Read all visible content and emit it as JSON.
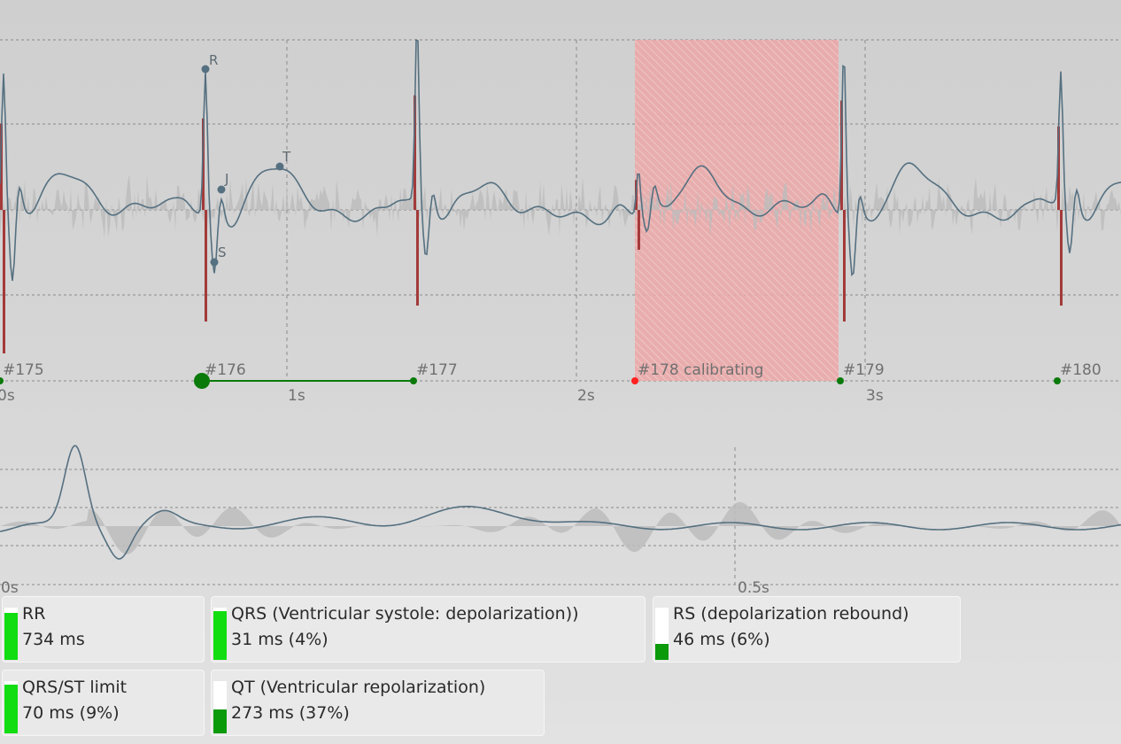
{
  "colors": {
    "trace": "#557080",
    "beat_ok": "#0a7a0a",
    "beat_calibrating": "#ff2020",
    "qrs_bars": "#a33a3a",
    "calibrating_region": "#f0a0a0",
    "bar_green": "#11dd11",
    "bar_darkgreen": "#0a9a0a"
  },
  "main_chart": {
    "time_ticks": [
      "0s",
      "1s",
      "2s",
      "3s"
    ],
    "beats": [
      {
        "label": "#175",
        "status": "ok"
      },
      {
        "label": "#176",
        "status": "selected"
      },
      {
        "label": "#177",
        "status": "ok"
      },
      {
        "label": "#178 calibrating",
        "status": "calibrating"
      },
      {
        "label": "#179",
        "status": "ok"
      },
      {
        "label": "#180",
        "status": "ok"
      }
    ],
    "wave_labels": {
      "r": "R",
      "s": "S",
      "j": "J",
      "t": "T"
    }
  },
  "detail_chart": {
    "time_ticks": [
      "0s",
      "0.5s"
    ]
  },
  "metrics": [
    {
      "title": "RR",
      "value": "734 ms",
      "level": 0.9,
      "color": "#11dd11"
    },
    {
      "title": "QRS (Ventricular systole: depolarization))",
      "value": "31 ms (4%)",
      "level": 0.93,
      "color": "#11dd11"
    },
    {
      "title": "RS (depolarization rebound)",
      "value": "46 ms (6%)",
      "level": 0.3,
      "color": "#0a9a0a"
    },
    {
      "title": "QRS/ST limit",
      "value": "70 ms (9%)",
      "level": 0.93,
      "color": "#11dd11"
    },
    {
      "title": "QT (Ventricular repolarization)",
      "value": "273 ms (37%)",
      "level": 0.45,
      "color": "#0a9a0a"
    }
  ]
}
